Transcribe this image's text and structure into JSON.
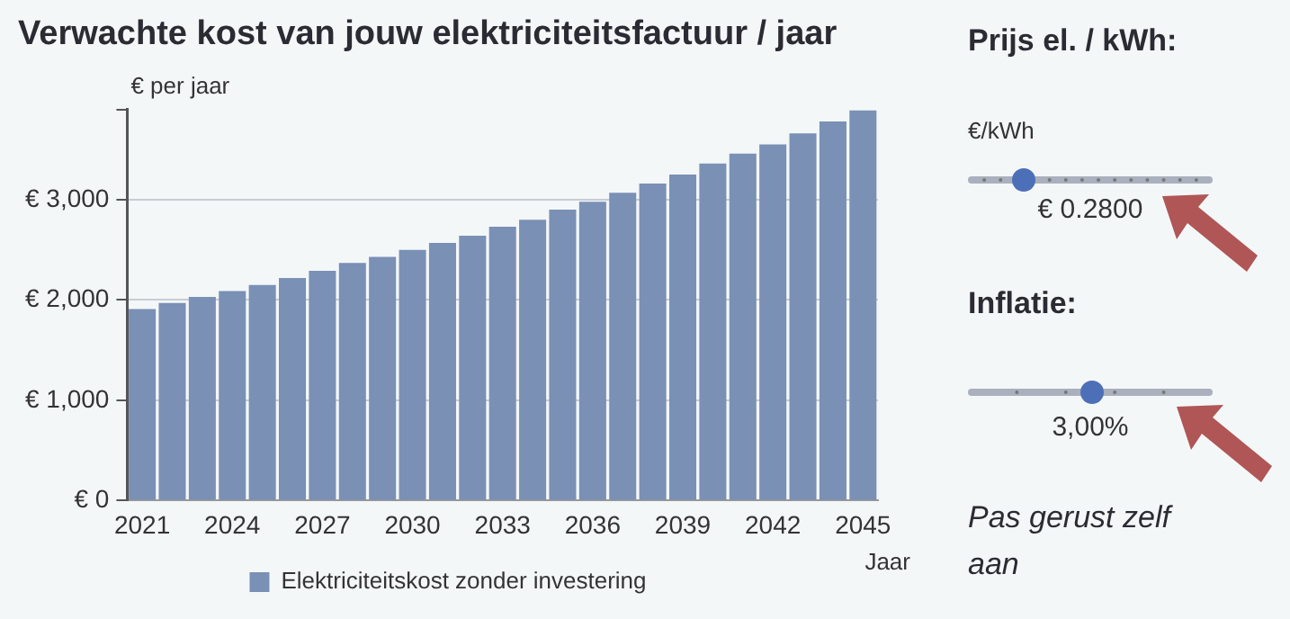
{
  "chart_data": {
    "type": "bar",
    "title": "Verwachte kost van jouw elektriciteitsfactuur / jaar",
    "xlabel": "Jaar",
    "ylabel": "€ per jaar",
    "categories": [
      "2021",
      null,
      null,
      "2024",
      null,
      null,
      "2027",
      null,
      null,
      "2030",
      null,
      null,
      "2033",
      null,
      null,
      "2036",
      null,
      null,
      "2039",
      null,
      null,
      "2042",
      null,
      null,
      "2045"
    ],
    "series": [
      {
        "name": "Elektriciteitskost zonder investering",
        "color": "#7a90b5",
        "values": [
          1910,
          1970,
          2030,
          2090,
          2150,
          2220,
          2290,
          2370,
          2430,
          2500,
          2570,
          2640,
          2730,
          2800,
          2900,
          2980,
          3070,
          3160,
          3250,
          3360,
          3460,
          3550,
          3660,
          3780,
          3890
        ]
      }
    ],
    "ylim": [
      0,
      3900
    ],
    "yticks": [
      {
        "value": 0,
        "label": "€ 0"
      },
      {
        "value": 1000,
        "label": "€ 1,000"
      },
      {
        "value": 2000,
        "label": "€ 2,000"
      },
      {
        "value": 3000,
        "label": "€ 3,000"
      },
      {
        "value": 3900,
        "label": null
      }
    ],
    "grid": "y",
    "legend": "bottom",
    "annotations": [
      "Prijs el. / kWh:",
      "€/kWh",
      "€ 0.2800",
      "Inflatie:",
      "3,00%",
      "Pas gerust zelf aan"
    ]
  }
}
